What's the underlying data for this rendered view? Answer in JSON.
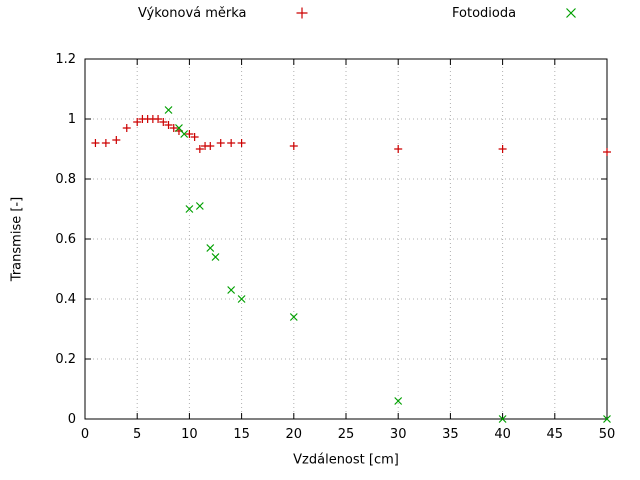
{
  "chart_data": {
    "type": "scatter",
    "title": "",
    "xlabel": "Vzdálenost [cm]",
    "ylabel": "Transmise [-]",
    "xlim": [
      0,
      50
    ],
    "ylim": [
      0,
      1.2
    ],
    "xtick_values": [
      0,
      5,
      10,
      15,
      20,
      25,
      30,
      35,
      40,
      45,
      50
    ],
    "xtick_labels": [
      "0",
      "5",
      "10",
      "15",
      "20",
      "25",
      "30",
      "35",
      "40",
      "45",
      "50"
    ],
    "ytick_values": [
      0,
      0.2,
      0.4,
      0.6,
      0.8,
      1,
      1.2
    ],
    "ytick_labels": [
      "0",
      "0.2",
      "0.4",
      "0.6",
      "0.8",
      "1",
      "1.2"
    ],
    "grid": true,
    "grid_color": "#b0b0b0",
    "axis_color": "#000000",
    "legend_position": "top",
    "series": [
      {
        "name": "Výkonová měrka",
        "marker": "plus",
        "color": "#cc0000",
        "points": [
          [
            1,
            0.92
          ],
          [
            2,
            0.92
          ],
          [
            3,
            0.93
          ],
          [
            4,
            0.97
          ],
          [
            5,
            0.99
          ],
          [
            5.5,
            1.0
          ],
          [
            6,
            1.0
          ],
          [
            6.5,
            1.0
          ],
          [
            7,
            1.0
          ],
          [
            7.5,
            0.99
          ],
          [
            8,
            0.98
          ],
          [
            8.5,
            0.97
          ],
          [
            9,
            0.96
          ],
          [
            10,
            0.95
          ],
          [
            10.5,
            0.94
          ],
          [
            11,
            0.9
          ],
          [
            11.5,
            0.91
          ],
          [
            12,
            0.91
          ],
          [
            13,
            0.92
          ],
          [
            14,
            0.92
          ],
          [
            15,
            0.92
          ],
          [
            20,
            0.91
          ],
          [
            30,
            0.9
          ],
          [
            40,
            0.9
          ],
          [
            50,
            0.89
          ]
        ]
      },
      {
        "name": "Fotodioda",
        "marker": "cross",
        "color": "#00a000",
        "points": [
          [
            8,
            1.03
          ],
          [
            9,
            0.97
          ],
          [
            9.5,
            0.95
          ],
          [
            10,
            0.7
          ],
          [
            11,
            0.71
          ],
          [
            12,
            0.57
          ],
          [
            12.5,
            0.54
          ],
          [
            14,
            0.43
          ],
          [
            15,
            0.4
          ],
          [
            20,
            0.34
          ],
          [
            30,
            0.06
          ],
          [
            40,
            0.0
          ],
          [
            50,
            0.0
          ]
        ]
      }
    ]
  }
}
